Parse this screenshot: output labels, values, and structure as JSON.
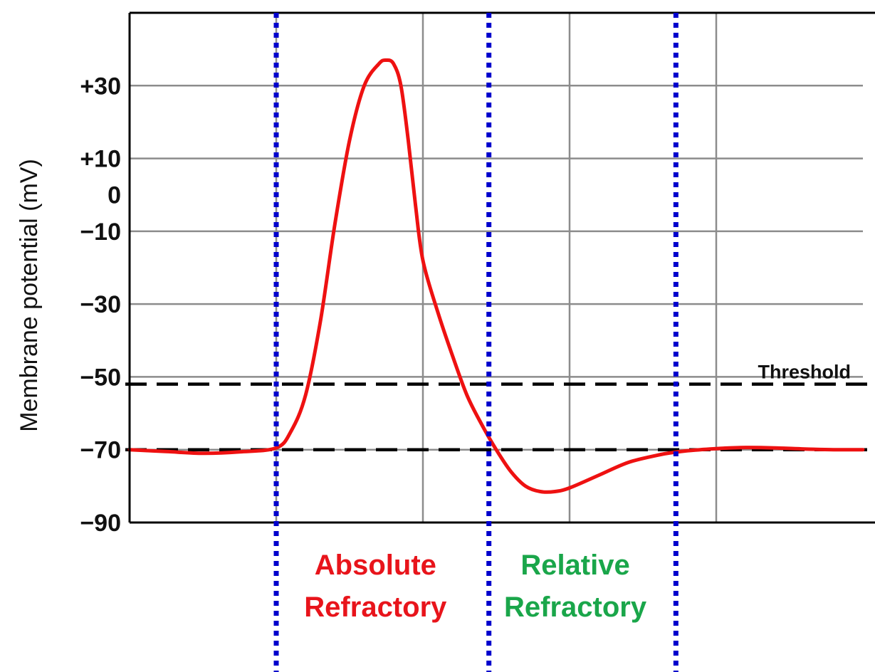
{
  "chart_data": {
    "type": "line",
    "title": "",
    "xlabel": "",
    "ylabel": "Membrane potential (mV)",
    "ylim": [
      -90,
      50
    ],
    "xlim": [
      0,
      10
    ],
    "grid": true,
    "y_ticks": [
      {
        "value": 30,
        "label": "+30"
      },
      {
        "value": 10,
        "label": "+10"
      },
      {
        "value": 0,
        "label": "0"
      },
      {
        "value": -10,
        "label": "−10"
      },
      {
        "value": -30,
        "label": "−30"
      },
      {
        "value": -50,
        "label": "−50"
      },
      {
        "value": -70,
        "label": "−70"
      },
      {
        "value": -90,
        "label": "−90"
      }
    ],
    "x_gridlines": [
      2,
      4,
      6,
      8
    ],
    "series": [
      {
        "color": "#ee1111",
        "x": [
          0,
          0.5,
          1.0,
          1.5,
          2.0,
          2.2,
          2.4,
          2.6,
          2.8,
          3.0,
          3.2,
          3.4,
          3.5,
          3.6,
          3.7,
          3.8,
          3.9,
          4.0,
          4.2,
          4.4,
          4.6,
          4.8,
          5.0,
          5.2,
          5.4,
          5.6,
          5.8,
          6.0,
          6.4,
          6.8,
          7.2,
          7.4,
          7.6,
          8.0,
          8.4,
          8.8,
          9.2,
          9.6,
          10.0
        ],
        "y": [
          -70,
          -70.5,
          -71,
          -70.6,
          -69.5,
          -65,
          -55,
          -35,
          -8,
          15,
          30,
          36,
          37,
          36,
          30,
          15,
          -3,
          -18,
          -32,
          -44,
          -55,
          -63,
          -70,
          -76,
          -80,
          -81.5,
          -81.5,
          -80.5,
          -77,
          -73.5,
          -71.5,
          -70.8,
          -70.3,
          -69.7,
          -69.4,
          -69.5,
          -69.8,
          -70,
          -70
        ]
      }
    ],
    "reference_lines": [
      {
        "value": -52,
        "label": "Threshold",
        "style": "dashed",
        "color": "#000000"
      },
      {
        "value": -70,
        "label": "",
        "style": "dashed",
        "color": "#000000"
      }
    ],
    "phase_boundaries": {
      "color": "#0000cc",
      "x": [
        2.0,
        4.9,
        7.45
      ]
    },
    "regions": [
      {
        "label_line1": "Absolute",
        "label_line2": "Refractory",
        "x_start": 2.0,
        "x_end": 4.9,
        "color": "#e8141b"
      },
      {
        "label_line1": "Relative",
        "label_line2": "Refractory",
        "x_start": 4.9,
        "x_end": 7.45,
        "color": "#1aa64a"
      }
    ]
  }
}
